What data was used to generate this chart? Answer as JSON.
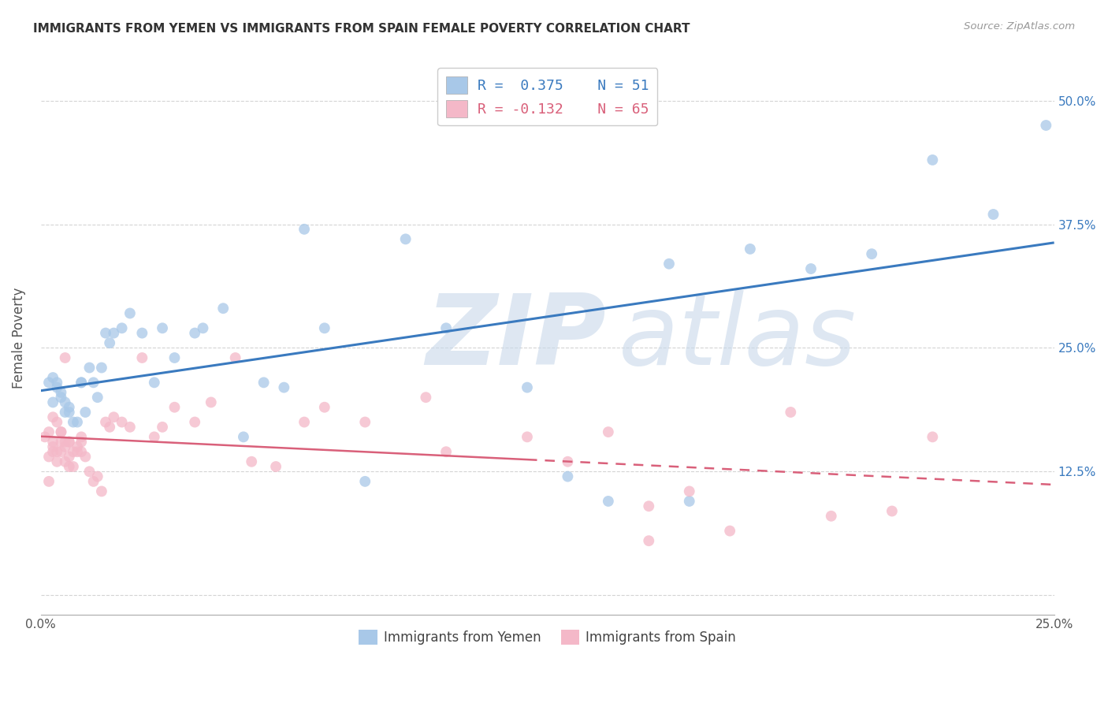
{
  "title": "IMMIGRANTS FROM YEMEN VS IMMIGRANTS FROM SPAIN FEMALE POVERTY CORRELATION CHART",
  "source": "Source: ZipAtlas.com",
  "ylabel": "Female Poverty",
  "xlim": [
    0.0,
    0.25
  ],
  "ylim": [
    -0.02,
    0.54
  ],
  "color_yemen": "#a8c8e8",
  "color_spain": "#f4b8c8",
  "color_line_yemen": "#3a7abf",
  "color_line_spain": "#d9607a",
  "background_color": "#ffffff",
  "grid_color": "#d0d0d0",
  "yemen_x": [
    0.002,
    0.003,
    0.003,
    0.004,
    0.004,
    0.005,
    0.005,
    0.006,
    0.006,
    0.007,
    0.007,
    0.008,
    0.009,
    0.01,
    0.01,
    0.011,
    0.012,
    0.013,
    0.014,
    0.015,
    0.016,
    0.017,
    0.018,
    0.02,
    0.022,
    0.025,
    0.028,
    0.03,
    0.033,
    0.038,
    0.04,
    0.045,
    0.05,
    0.055,
    0.06,
    0.065,
    0.07,
    0.08,
    0.09,
    0.1,
    0.12,
    0.13,
    0.14,
    0.155,
    0.16,
    0.175,
    0.19,
    0.205,
    0.22,
    0.235,
    0.248
  ],
  "yemen_y": [
    0.215,
    0.22,
    0.195,
    0.21,
    0.215,
    0.2,
    0.205,
    0.195,
    0.185,
    0.19,
    0.185,
    0.175,
    0.175,
    0.215,
    0.215,
    0.185,
    0.23,
    0.215,
    0.2,
    0.23,
    0.265,
    0.255,
    0.265,
    0.27,
    0.285,
    0.265,
    0.215,
    0.27,
    0.24,
    0.265,
    0.27,
    0.29,
    0.16,
    0.215,
    0.21,
    0.37,
    0.27,
    0.115,
    0.36,
    0.27,
    0.21,
    0.12,
    0.095,
    0.335,
    0.095,
    0.35,
    0.33,
    0.345,
    0.44,
    0.385,
    0.475
  ],
  "spain_x": [
    0.001,
    0.002,
    0.002,
    0.003,
    0.003,
    0.003,
    0.004,
    0.004,
    0.005,
    0.005,
    0.005,
    0.006,
    0.006,
    0.006,
    0.007,
    0.007,
    0.007,
    0.008,
    0.008,
    0.009,
    0.009,
    0.01,
    0.01,
    0.01,
    0.011,
    0.012,
    0.013,
    0.014,
    0.015,
    0.016,
    0.017,
    0.018,
    0.02,
    0.022,
    0.025,
    0.028,
    0.03,
    0.033,
    0.038,
    0.042,
    0.048,
    0.052,
    0.058,
    0.065,
    0.07,
    0.08,
    0.095,
    0.1,
    0.12,
    0.13,
    0.14,
    0.15,
    0.16,
    0.17,
    0.185,
    0.195,
    0.21,
    0.22,
    0.002,
    0.003,
    0.004,
    0.005,
    0.006,
    0.007,
    0.15
  ],
  "spain_y": [
    0.16,
    0.115,
    0.14,
    0.145,
    0.15,
    0.155,
    0.145,
    0.135,
    0.155,
    0.165,
    0.145,
    0.155,
    0.15,
    0.135,
    0.155,
    0.14,
    0.13,
    0.145,
    0.13,
    0.15,
    0.145,
    0.155,
    0.145,
    0.16,
    0.14,
    0.125,
    0.115,
    0.12,
    0.105,
    0.175,
    0.17,
    0.18,
    0.175,
    0.17,
    0.24,
    0.16,
    0.17,
    0.19,
    0.175,
    0.195,
    0.24,
    0.135,
    0.13,
    0.175,
    0.19,
    0.175,
    0.2,
    0.145,
    0.16,
    0.135,
    0.165,
    0.09,
    0.105,
    0.065,
    0.185,
    0.08,
    0.085,
    0.16,
    0.165,
    0.18,
    0.175,
    0.165,
    0.24,
    0.155,
    0.055
  ]
}
